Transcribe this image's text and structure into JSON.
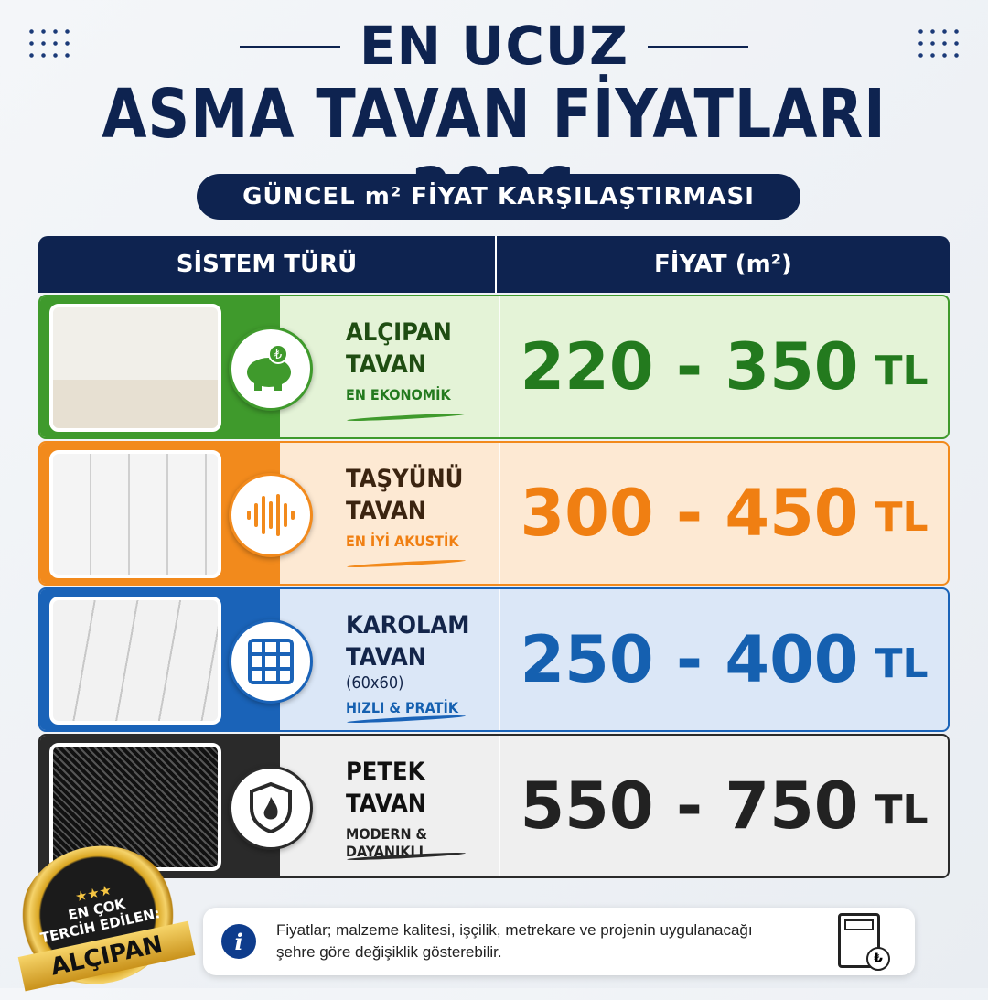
{
  "header": {
    "line1": "EN UCUZ",
    "line2": "ASMA TAVAN FİYATLARI 2026",
    "subtitle": "GÜNCEL m² FİYAT KARŞILAŞTIRMASI"
  },
  "table": {
    "col1": "SİSTEM TÜRÜ",
    "col2": "FİYAT (m²)",
    "rows": [
      {
        "name1": "ALÇIPAN",
        "name2": "TAVAN",
        "extra": "",
        "tag": "EN EKONOMİK",
        "price": "220 - 350",
        "unit": "TL",
        "icon": "piggy-bank-icon",
        "accent": "#3f9a2c",
        "bg": "#e4f3d7",
        "priceColor": "#237a1e",
        "textColor": "#1f4d12"
      },
      {
        "name1": "TAŞYÜNÜ",
        "name2": "TAVAN",
        "extra": "",
        "tag": "EN İYİ AKUSTİK",
        "price": "300 - 450",
        "unit": "TL",
        "icon": "sound-wave-icon",
        "accent": "#f28a1c",
        "bg": "#fde9d3",
        "priceColor": "#f07f12",
        "textColor": "#3b2410"
      },
      {
        "name1": "KAROLAM",
        "name2": "TAVAN",
        "extra": "(60x60)",
        "tag": "HIZLI & PRATİK",
        "price": "250 - 400",
        "unit": "TL",
        "icon": "grid-icon",
        "accent": "#1a63b8",
        "bg": "#dbe7f7",
        "priceColor": "#1560b0",
        "textColor": "#13254a"
      },
      {
        "name1": "PETEK",
        "name2": "TAVAN",
        "extra": "",
        "tag": "MODERN & DAYANIKLI",
        "price": "550 - 750",
        "unit": "TL",
        "icon": "fire-shield-icon",
        "accent": "#2a2a2a",
        "bg": "#efefef",
        "priceColor": "#222222",
        "textColor": "#111111"
      }
    ]
  },
  "badge": {
    "line1": "EN ÇOK",
    "line2": "TERCİH EDİLEN:",
    "ribbon": "ALÇIPAN"
  },
  "note": {
    "text": "Fiyatlar; malzeme kalitesi, işçilik, metrekare ve projenin uygulanacağı şehre göre değişiklik gösterebilir."
  }
}
